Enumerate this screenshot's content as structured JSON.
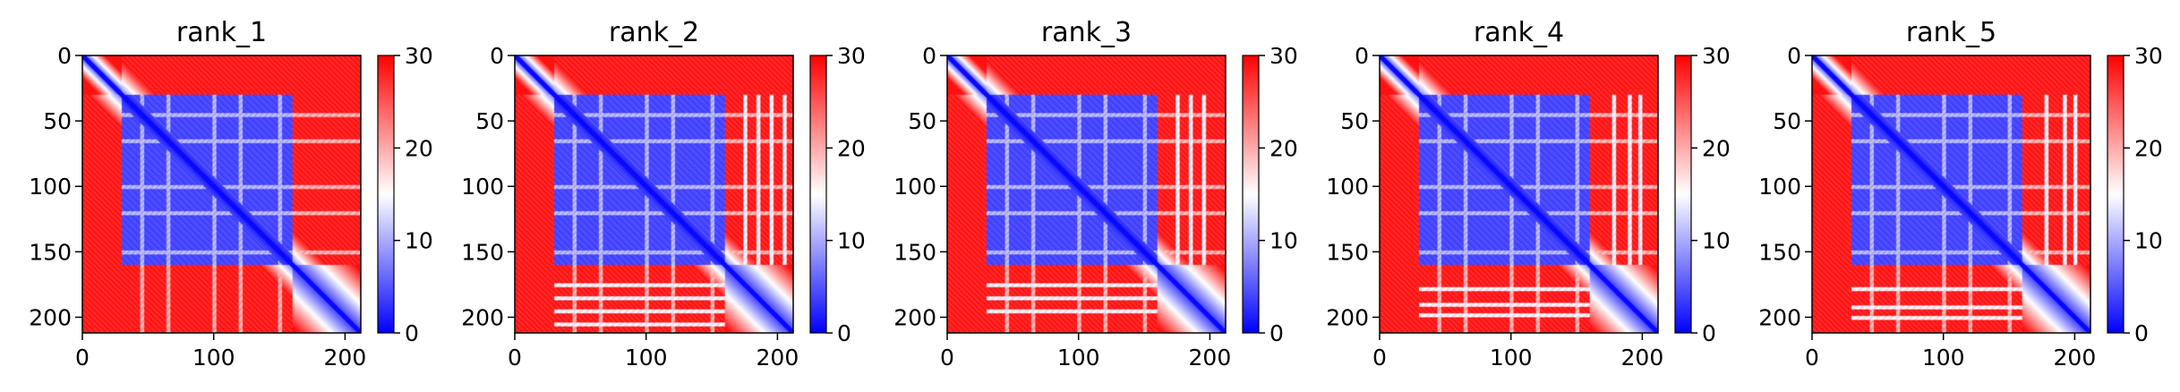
{
  "chart_data": [
    {
      "type": "heatmap",
      "title": "rank_1",
      "id": "r1",
      "n": 212,
      "xlim": [
        0,
        212
      ],
      "ylim": [
        212,
        0
      ],
      "xticks": [
        0,
        100,
        200
      ],
      "yticks": [
        0,
        50,
        100,
        150,
        200
      ],
      "domain_a": [
        30,
        160
      ],
      "domain_b": [
        160,
        212
      ],
      "stripes": [
        45,
        65,
        100,
        120,
        150
      ],
      "dense_bands": [],
      "colorbar": {
        "range": [
          0,
          30
        ],
        "ticks": [
          0,
          10,
          20,
          30
        ],
        "colormap": [
          "#0000ff",
          "#ffffff",
          "#ff0000"
        ]
      }
    },
    {
      "type": "heatmap",
      "title": "rank_2",
      "id": "r2",
      "n": 212,
      "xlim": [
        0,
        212
      ],
      "ylim": [
        212,
        0
      ],
      "xticks": [
        0,
        100,
        200
      ],
      "yticks": [
        0,
        50,
        100,
        150,
        200
      ],
      "domain_a": [
        30,
        160
      ],
      "domain_b": [
        160,
        212
      ],
      "stripes": [
        45,
        65,
        100,
        120,
        150
      ],
      "dense_bands": [
        175,
        185,
        195,
        205
      ],
      "colorbar": {
        "range": [
          0,
          30
        ],
        "ticks": [
          0,
          10,
          20,
          30
        ],
        "colormap": [
          "#0000ff",
          "#ffffff",
          "#ff0000"
        ]
      }
    },
    {
      "type": "heatmap",
      "title": "rank_3",
      "id": "r3",
      "n": 212,
      "xlim": [
        0,
        212
      ],
      "ylim": [
        212,
        0
      ],
      "xticks": [
        0,
        100,
        200
      ],
      "yticks": [
        0,
        50,
        100,
        150,
        200
      ],
      "domain_a": [
        30,
        160
      ],
      "domain_b": [
        160,
        212
      ],
      "stripes": [
        45,
        65,
        100,
        120,
        150
      ],
      "dense_bands": [
        175,
        185,
        195
      ],
      "colorbar": {
        "range": [
          0,
          30
        ],
        "ticks": [
          0,
          10,
          20,
          30
        ],
        "colormap": [
          "#0000ff",
          "#ffffff",
          "#ff0000"
        ]
      }
    },
    {
      "type": "heatmap",
      "title": "rank_4",
      "id": "r4",
      "n": 212,
      "xlim": [
        0,
        212
      ],
      "ylim": [
        212,
        0
      ],
      "xticks": [
        0,
        100,
        200
      ],
      "yticks": [
        0,
        50,
        100,
        150,
        200
      ],
      "domain_a": [
        30,
        160
      ],
      "domain_b": [
        160,
        212
      ],
      "stripes": [
        45,
        65,
        100,
        120,
        150
      ],
      "dense_bands": [
        178,
        190,
        198
      ],
      "colorbar": {
        "range": [
          0,
          30
        ],
        "ticks": [
          0,
          10,
          20,
          30
        ],
        "colormap": [
          "#0000ff",
          "#ffffff",
          "#ff0000"
        ]
      }
    },
    {
      "type": "heatmap",
      "title": "rank_5",
      "id": "r5",
      "n": 212,
      "xlim": [
        0,
        212
      ],
      "ylim": [
        212,
        0
      ],
      "xticks": [
        0,
        100,
        200
      ],
      "yticks": [
        0,
        50,
        100,
        150,
        200
      ],
      "domain_a": [
        30,
        160
      ],
      "domain_b": [
        160,
        212
      ],
      "stripes": [
        45,
        65,
        100,
        120,
        150
      ],
      "dense_bands": [
        178,
        192,
        200
      ],
      "colorbar": {
        "range": [
          0,
          30
        ],
        "ticks": [
          0,
          10,
          20,
          30
        ],
        "colormap": [
          "#0000ff",
          "#ffffff",
          "#ff0000"
        ]
      }
    }
  ]
}
